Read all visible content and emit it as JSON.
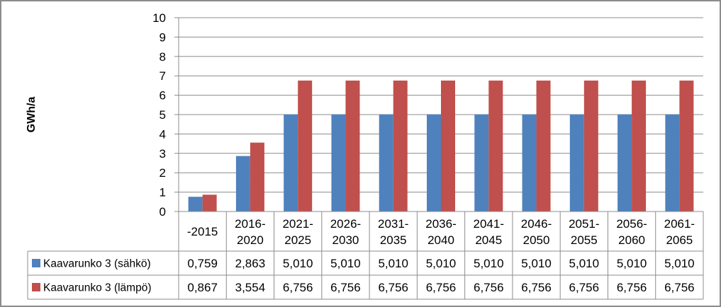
{
  "chart_data": {
    "type": "bar",
    "title": "",
    "xlabel": "",
    "ylabel": "GWh/a",
    "ylim": [
      0,
      10
    ],
    "yticks": [
      "0",
      "1",
      "2",
      "3",
      "4",
      "5",
      "6",
      "7",
      "8",
      "9",
      "10"
    ],
    "grid": true,
    "categories": [
      "-2015",
      "2016-2020",
      "2021-2025",
      "2026-2030",
      "2031-2035",
      "2036-2040",
      "2041-2045",
      "2046-2050",
      "2051-2055",
      "2056-2060",
      "2061-2065"
    ],
    "category_lines": [
      [
        "-2015"
      ],
      [
        "2016-",
        "2020"
      ],
      [
        "2021-",
        "2025"
      ],
      [
        "2026-",
        "2030"
      ],
      [
        "2031-",
        "2035"
      ],
      [
        "2036-",
        "2040"
      ],
      [
        "2041-",
        "2045"
      ],
      [
        "2046-",
        "2050"
      ],
      [
        "2051-",
        "2055"
      ],
      [
        "2056-",
        "2060"
      ],
      [
        "2061-",
        "2065"
      ]
    ],
    "series": [
      {
        "name": "Kaavarunko 3 (sähkö)",
        "color": "#4f81bd",
        "values": [
          0.759,
          2.863,
          5.01,
          5.01,
          5.01,
          5.01,
          5.01,
          5.01,
          5.01,
          5.01,
          5.01
        ],
        "labels": [
          "0,759",
          "2,863",
          "5,010",
          "5,010",
          "5,010",
          "5,010",
          "5,010",
          "5,010",
          "5,010",
          "5,010",
          "5,010"
        ]
      },
      {
        "name": "Kaavarunko 3 (lämpö)",
        "color": "#c0504d",
        "values": [
          0.867,
          3.554,
          6.756,
          6.756,
          6.756,
          6.756,
          6.756,
          6.756,
          6.756,
          6.756,
          6.756
        ],
        "labels": [
          "0,867",
          "3,554",
          "6,756",
          "6,756",
          "6,756",
          "6,756",
          "6,756",
          "6,756",
          "6,756",
          "6,756",
          "6,756"
        ]
      }
    ],
    "legend": "data-table"
  }
}
